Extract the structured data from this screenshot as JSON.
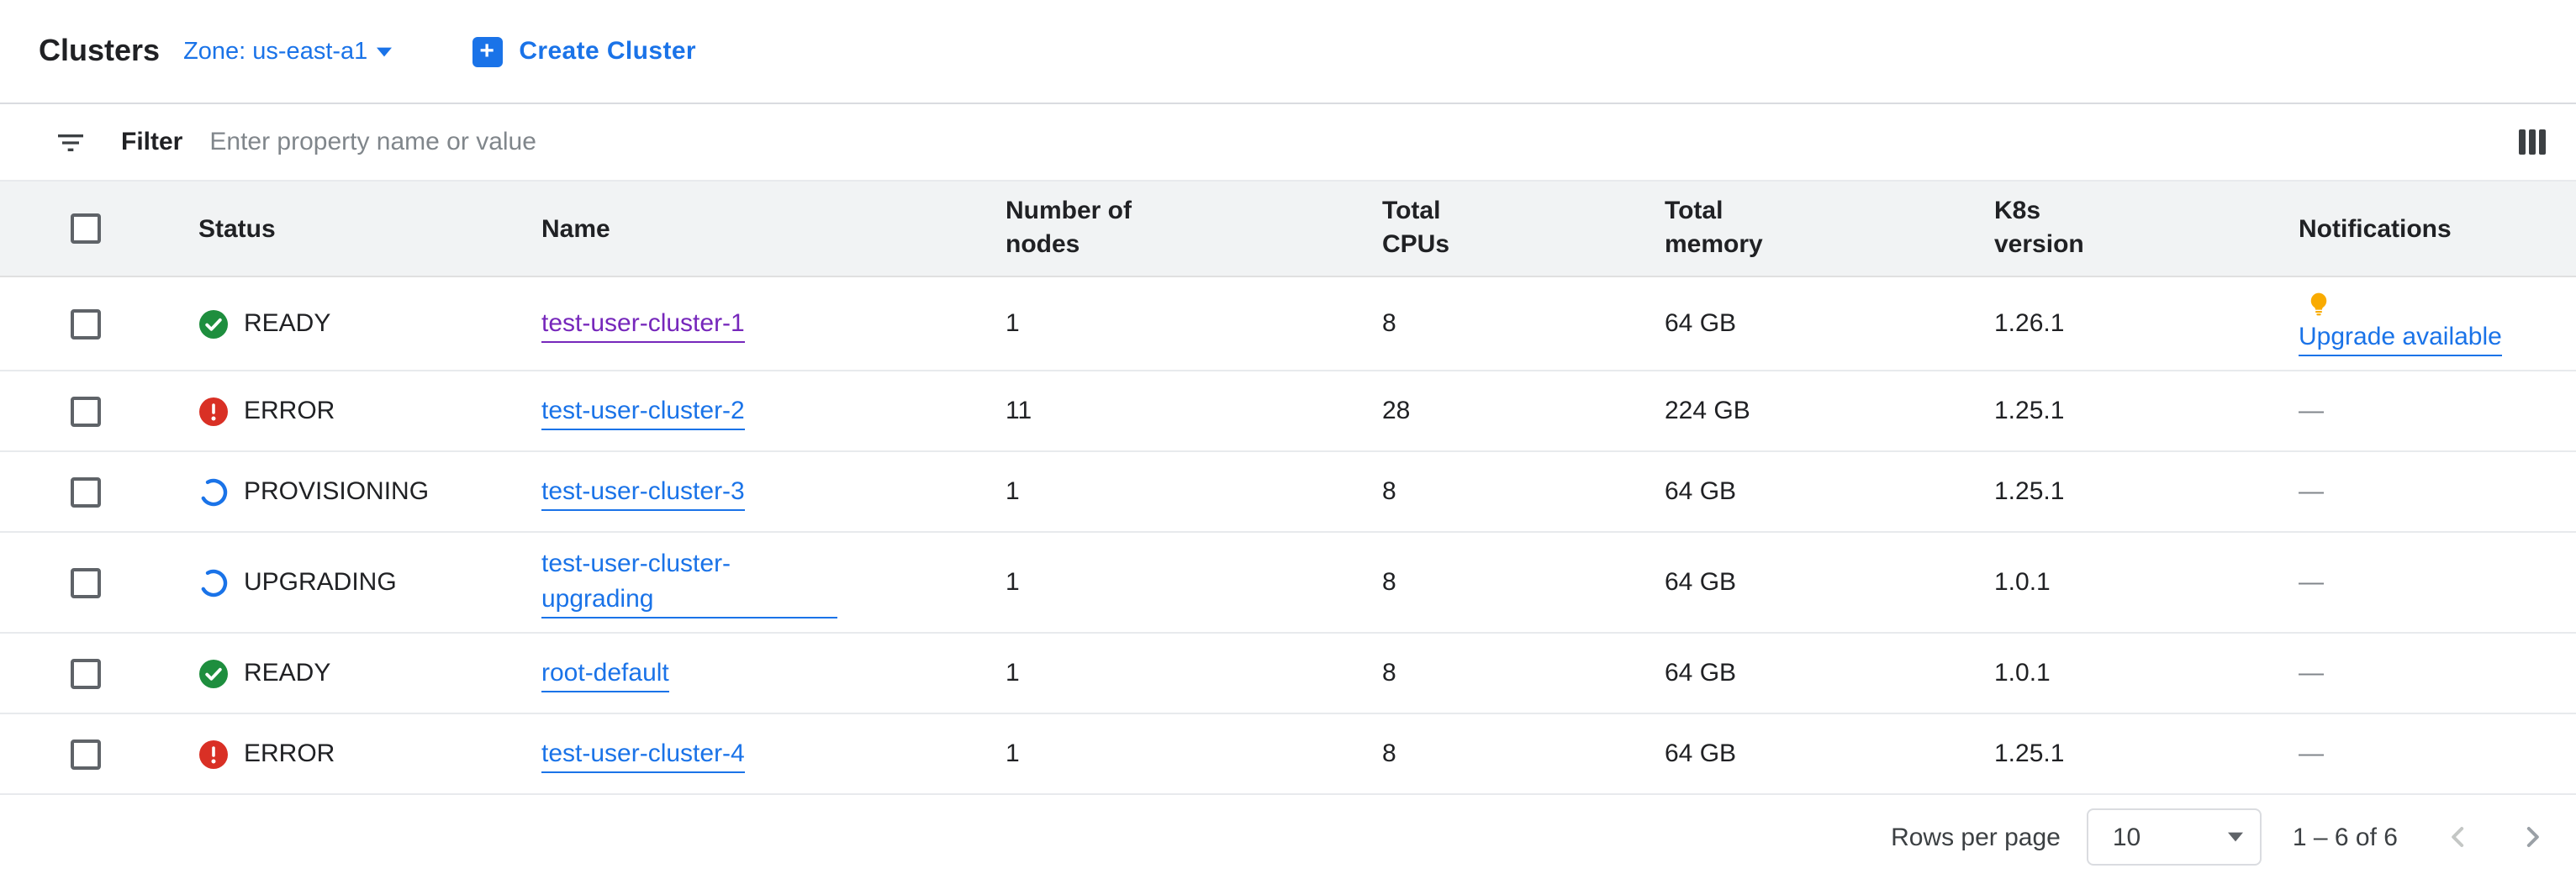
{
  "header": {
    "title": "Clusters",
    "zone_label": "Zone: us-east-a1",
    "create_button_label": "Create Cluster"
  },
  "filter": {
    "label": "Filter",
    "placeholder": "Enter property name or value"
  },
  "table": {
    "columns": [
      "Status",
      "Name",
      "Number of nodes",
      "Total CPUs",
      "Total memory",
      "K8s version",
      "Notifications"
    ],
    "rows": [
      {
        "status": "READY",
        "status_type": "ready",
        "name": "test-user-cluster-1",
        "visited": true,
        "nodes": "1",
        "cpus": "8",
        "memory": "64 GB",
        "version": "1.26.1",
        "notification": {
          "type": "upgrade",
          "label": "Upgrade available"
        }
      },
      {
        "status": "ERROR",
        "status_type": "error",
        "name": "test-user-cluster-2",
        "visited": false,
        "nodes": "11",
        "cpus": "28",
        "memory": "224 GB",
        "version": "1.25.1",
        "notification": {
          "type": "none",
          "label": "—"
        }
      },
      {
        "status": "PROVISIONING",
        "status_type": "progress",
        "name": "test-user-cluster-3",
        "visited": false,
        "nodes": "1",
        "cpus": "8",
        "memory": "64 GB",
        "version": "1.25.1",
        "notification": {
          "type": "none",
          "label": "—"
        }
      },
      {
        "status": "UPGRADING",
        "status_type": "progress",
        "name": "test-user-cluster-upgrading",
        "visited": false,
        "nodes": "1",
        "cpus": "8",
        "memory": "64 GB",
        "version": "1.0.1",
        "notification": {
          "type": "none",
          "label": "—"
        }
      },
      {
        "status": "READY",
        "status_type": "ready",
        "name": "root-default",
        "visited": false,
        "nodes": "1",
        "cpus": "8",
        "memory": "64 GB",
        "version": "1.0.1",
        "notification": {
          "type": "none",
          "label": "—"
        }
      },
      {
        "status": "ERROR",
        "status_type": "error",
        "name": "test-user-cluster-4",
        "visited": false,
        "nodes": "1",
        "cpus": "8",
        "memory": "64 GB",
        "version": "1.25.1",
        "notification": {
          "type": "none",
          "label": "—"
        }
      }
    ]
  },
  "pagination": {
    "rows_per_page_label": "Rows per page",
    "rows_per_page_value": "10",
    "range_label": "1 – 6 of 6"
  },
  "colors": {
    "accent": "#1a73e8",
    "status_ready": "#1e8e3e",
    "status_error": "#d93025",
    "bulb": "#f9ab00",
    "visited_link": "#7627bb",
    "header_bg": "#f1f3f4"
  }
}
